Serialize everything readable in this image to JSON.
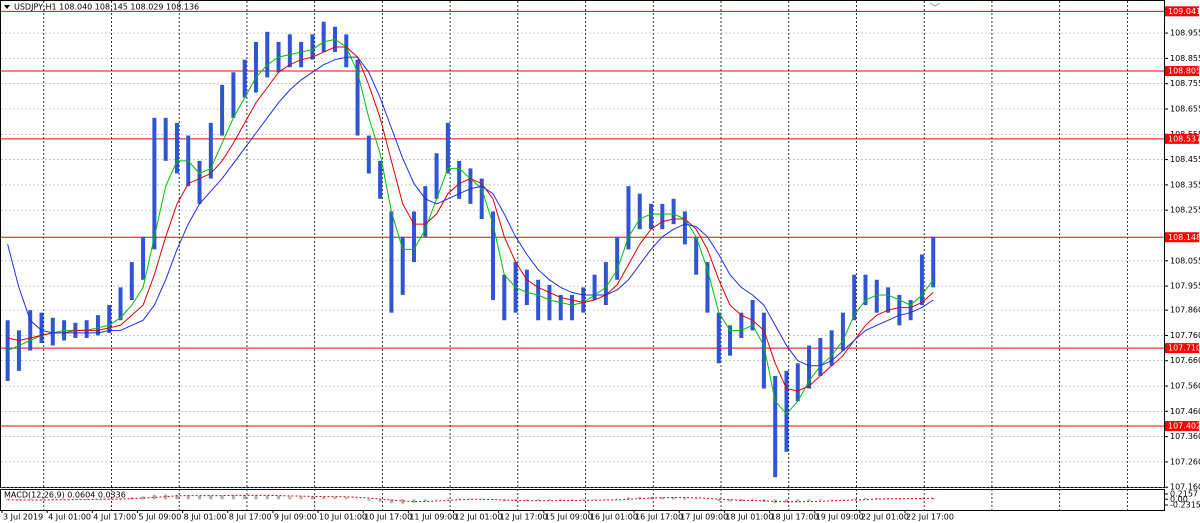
{
  "chart_data": {
    "type": "range_bar",
    "title": "USDJPY,H1  108.040 108.145 108.029 108.136",
    "color": "#2f55d4",
    "grid": true,
    "categories": [
      "3 Jul 2019",
      null,
      null,
      null,
      "4 Jul 01:00",
      null,
      null,
      null,
      "4 Jul 17:00",
      null,
      null,
      null,
      "5 Jul 09:00",
      null,
      null,
      null,
      "8 Jul 01:00",
      null,
      null,
      null,
      "8 Jul 17:00",
      null,
      null,
      null,
      "9 Jul 09:00",
      null,
      null,
      null,
      "10 Jul 01:00",
      null,
      null,
      null,
      "10 Jul 17:00",
      null,
      null,
      null,
      "11 Jul 09:00",
      null,
      null,
      null,
      "12 Jul 01:00",
      null,
      null,
      null,
      "12 Jul 17:00",
      null,
      null,
      null,
      "15 Jul 09:00",
      null,
      null,
      null,
      "16 Jul 01:00",
      null,
      null,
      null,
      "16 Jul 17:00",
      null,
      null,
      null,
      "17 Jul 09:00",
      null,
      null,
      null,
      "18 Jul 01:00",
      null,
      null,
      null,
      "18 Jul 17:00",
      null,
      null,
      null,
      "19 Jul 09:00",
      null,
      null,
      null,
      "22 Jul 01:00",
      null,
      null,
      null,
      "22 Jul 17:00",
      null,
      null
    ],
    "high": [
      107.82,
      107.78,
      107.86,
      107.85,
      107.83,
      107.82,
      107.81,
      107.82,
      107.84,
      107.88,
      107.95,
      108.05,
      108.15,
      108.62,
      108.62,
      108.6,
      108.55,
      108.45,
      108.6,
      108.75,
      108.8,
      108.85,
      108.92,
      108.96,
      108.92,
      108.95,
      108.92,
      108.95,
      109.0,
      108.98,
      108.95,
      108.85,
      108.55,
      108.45,
      108.25,
      108.15,
      108.25,
      108.35,
      108.48,
      108.6,
      108.45,
      108.42,
      108.38,
      108.25,
      108.0,
      108.05,
      108.02,
      107.98,
      107.96,
      107.92,
      107.92,
      107.95,
      108.0,
      108.05,
      108.15,
      108.35,
      108.32,
      108.28,
      108.28,
      108.3,
      108.25,
      108.15,
      108.05,
      107.85,
      107.8,
      107.85,
      107.9,
      107.85,
      107.6,
      107.62,
      107.65,
      107.72,
      107.75,
      107.78,
      107.85,
      108.0,
      108.0,
      107.98,
      107.95,
      107.92,
      107.9,
      108.08,
      108.15
    ],
    "low": [
      107.58,
      107.62,
      107.7,
      107.73,
      107.72,
      107.74,
      107.75,
      107.75,
      107.76,
      107.77,
      107.82,
      107.9,
      107.98,
      108.1,
      108.45,
      108.4,
      108.35,
      108.28,
      108.38,
      108.55,
      108.62,
      108.7,
      108.72,
      108.78,
      108.8,
      108.82,
      108.82,
      108.85,
      108.88,
      108.88,
      108.82,
      108.55,
      108.4,
      108.3,
      107.85,
      107.92,
      108.05,
      108.15,
      108.3,
      108.4,
      108.3,
      108.28,
      108.22,
      107.9,
      107.82,
      107.85,
      107.88,
      107.82,
      107.82,
      107.82,
      107.82,
      107.85,
      107.9,
      107.88,
      107.98,
      108.1,
      108.18,
      108.18,
      108.18,
      108.2,
      108.12,
      108.0,
      107.85,
      107.65,
      107.68,
      107.75,
      107.78,
      107.55,
      107.2,
      107.3,
      107.5,
      107.55,
      107.6,
      107.64,
      107.7,
      107.82,
      107.88,
      107.85,
      107.85,
      107.8,
      107.82,
      107.88,
      107.95
    ],
    "lines": [
      {
        "color": "#00c000",
        "values": [
          107.7,
          107.72,
          107.74,
          107.76,
          107.77,
          107.78,
          107.78,
          107.78,
          107.79,
          107.8,
          107.83,
          107.88,
          107.95,
          108.15,
          108.35,
          108.45,
          108.45,
          108.4,
          108.42,
          108.52,
          108.62,
          108.7,
          108.78,
          108.83,
          108.86,
          108.87,
          108.88,
          108.89,
          108.92,
          108.93,
          108.9,
          108.8,
          108.62,
          108.48,
          108.25,
          108.1,
          108.1,
          108.18,
          108.3,
          108.42,
          108.42,
          108.38,
          108.34,
          108.2,
          108.0,
          107.95,
          107.93,
          107.92,
          107.9,
          107.89,
          107.88,
          107.89,
          107.92,
          107.95,
          108.02,
          108.15,
          108.22,
          108.24,
          108.24,
          108.24,
          108.22,
          108.15,
          108.02,
          107.85,
          107.78,
          107.78,
          107.8,
          107.72,
          107.5,
          107.45,
          107.5,
          107.58,
          107.64,
          107.68,
          107.74,
          107.84,
          107.9,
          107.92,
          107.92,
          107.9,
          107.88,
          107.92,
          107.98
        ]
      },
      {
        "color": "#e00000",
        "values": [
          107.75,
          107.74,
          107.75,
          107.76,
          107.77,
          107.77,
          107.78,
          107.78,
          107.78,
          107.79,
          107.8,
          107.84,
          107.88,
          108.0,
          108.15,
          108.28,
          108.36,
          108.38,
          108.4,
          108.45,
          108.52,
          108.6,
          108.68,
          108.74,
          108.8,
          108.83,
          108.85,
          108.86,
          108.88,
          108.9,
          108.9,
          108.86,
          108.75,
          108.62,
          108.45,
          108.28,
          108.2,
          108.2,
          108.24,
          108.32,
          108.36,
          108.38,
          108.36,
          108.3,
          108.15,
          108.05,
          107.98,
          107.95,
          107.93,
          107.91,
          107.9,
          107.89,
          107.9,
          107.92,
          107.96,
          108.04,
          108.12,
          108.18,
          108.21,
          108.22,
          108.22,
          108.18,
          108.1,
          107.98,
          107.88,
          107.84,
          107.82,
          107.78,
          107.65,
          107.55,
          107.54,
          107.56,
          107.6,
          107.64,
          107.68,
          107.74,
          107.8,
          107.84,
          107.86,
          107.87,
          107.87,
          107.89,
          107.93
        ]
      },
      {
        "color": "#1f2ee8",
        "values": [
          108.12,
          107.95,
          107.82,
          107.78,
          107.77,
          107.77,
          107.77,
          107.77,
          107.77,
          107.78,
          107.78,
          107.8,
          107.82,
          107.88,
          107.98,
          108.1,
          108.2,
          108.28,
          108.33,
          108.38,
          108.44,
          108.5,
          108.56,
          108.62,
          108.68,
          108.73,
          108.77,
          108.8,
          108.83,
          108.85,
          108.86,
          108.86,
          108.8,
          108.7,
          108.58,
          108.46,
          108.36,
          108.3,
          108.28,
          108.3,
          108.32,
          108.34,
          108.35,
          108.32,
          108.24,
          108.15,
          108.08,
          108.02,
          107.98,
          107.95,
          107.93,
          107.92,
          107.92,
          107.92,
          107.94,
          107.98,
          108.04,
          108.1,
          108.15,
          108.18,
          108.2,
          108.19,
          108.15,
          108.08,
          108.0,
          107.95,
          107.92,
          107.88,
          107.8,
          107.72,
          107.66,
          107.64,
          107.64,
          107.66,
          107.7,
          107.74,
          107.78,
          107.8,
          107.82,
          107.84,
          107.85,
          107.87,
          107.9
        ]
      }
    ],
    "levels": [
      109.041,
      108.805,
      108.537,
      108.148,
      107.71,
      107.402
    ],
    "level_labels": [
      "109.041",
      "108.805",
      "108.537",
      "108.148",
      "107.710",
      "107.402"
    ],
    "level_color": "#ff0000",
    "ylim": [
      107.157,
      109.066
    ],
    "yticks": [
      108.955,
      108.855,
      108.755,
      108.655,
      108.555,
      108.455,
      108.355,
      108.255,
      108.055,
      107.955,
      {
        "value": 107.86,
        "label": "107.860"
      },
      {
        "value": 107.76,
        "label": "107.760"
      },
      {
        "value": 107.66,
        "label": "107.660"
      },
      {
        "value": 107.56,
        "label": "107.560"
      },
      {
        "value": 107.46,
        "label": "107.460"
      },
      {
        "value": 107.36,
        "label": "107.360"
      },
      {
        "value": 107.26,
        "label": "107.260"
      },
      {
        "value": 107.16,
        "label": "107.160"
      }
    ],
    "macd": {
      "title": "MACD(12,26,9) 0.0604 0.0336",
      "histogram_color": "#b0b0b0",
      "signal_color": "#e00000",
      "histogram": [
        -0.03,
        -0.04,
        -0.03,
        -0.02,
        -0.01,
        -0.01,
        0,
        0,
        0.01,
        0.02,
        0.04,
        0.08,
        0.12,
        0.18,
        0.2,
        0.19,
        0.16,
        0.14,
        0.15,
        0.16,
        0.17,
        0.17,
        0.16,
        0.15,
        0.14,
        0.12,
        0.11,
        0.1,
        0.1,
        0.1,
        0.08,
        0.02,
        -0.06,
        -0.1,
        -0.16,
        -0.18,
        -0.14,
        -0.08,
        -0.02,
        0.03,
        0.04,
        0.03,
        0.01,
        -0.03,
        -0.08,
        -0.08,
        -0.07,
        -0.06,
        -0.05,
        -0.05,
        -0.04,
        -0.03,
        -0.02,
        0,
        0.03,
        0.08,
        0.1,
        0.09,
        0.08,
        0.07,
        0.06,
        0.03,
        -0.02,
        -0.08,
        -0.09,
        -0.08,
        -0.06,
        -0.1,
        -0.16,
        -0.14,
        -0.1,
        -0.07,
        -0.04,
        -0.02,
        0,
        0.03,
        0.05,
        0.05,
        0.04,
        0.03,
        0.03,
        0.05,
        0.06
      ],
      "signal": [
        -0.02,
        -0.03,
        -0.03,
        -0.03,
        -0.02,
        -0.02,
        -0.01,
        -0.01,
        0,
        0,
        0.01,
        0.03,
        0.05,
        0.08,
        0.11,
        0.14,
        0.15,
        0.15,
        0.15,
        0.15,
        0.16,
        0.16,
        0.16,
        0.16,
        0.15,
        0.14,
        0.13,
        0.12,
        0.11,
        0.11,
        0.1,
        0.08,
        0.05,
        0.01,
        -0.03,
        -0.07,
        -0.09,
        -0.09,
        -0.07,
        -0.05,
        -0.02,
        0,
        0,
        -0.01,
        -0.03,
        -0.05,
        -0.06,
        -0.06,
        -0.06,
        -0.05,
        -0.05,
        -0.04,
        -0.04,
        -0.03,
        -0.02,
        0,
        0.03,
        0.05,
        0.06,
        0.07,
        0.07,
        0.06,
        0.04,
        0.01,
        -0.02,
        -0.04,
        -0.05,
        -0.06,
        -0.09,
        -0.1,
        -0.1,
        -0.09,
        -0.08,
        -0.06,
        -0.05,
        -0.03,
        -0.01,
        0.01,
        0.02,
        0.02,
        0.03,
        0.03,
        0.04
      ],
      "ylim": [
        -0.2315,
        0.2157
      ],
      "yticks": [
        0.2157,
        {
          "value": 0,
          "label": "0.00"
        },
        -0.2315
      ]
    }
  }
}
